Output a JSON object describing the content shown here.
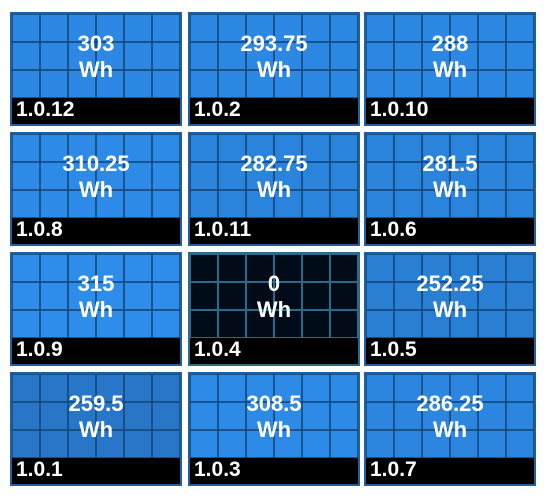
{
  "unit": "Wh",
  "panels": [
    {
      "value": 303,
      "id": "1.0.12",
      "color": "#2c88e2"
    },
    {
      "value": 293.75,
      "id": "1.0.2",
      "color": "#2c88e2"
    },
    {
      "value": 288,
      "id": "1.0.10",
      "color": "#2c88e2"
    },
    {
      "value": 310.25,
      "id": "1.0.8",
      "color": "#2d8ae6"
    },
    {
      "value": 282.75,
      "id": "1.0.11",
      "color": "#2a84dc"
    },
    {
      "value": 281.5,
      "id": "1.0.6",
      "color": "#2a84dc"
    },
    {
      "value": 315,
      "id": "1.0.9",
      "color": "#2e8cea"
    },
    {
      "value": 0,
      "id": "1.0.4",
      "color": "#020c18"
    },
    {
      "value": 252.25,
      "id": "1.0.5",
      "color": "#297fd4"
    },
    {
      "value": 259.5,
      "id": "1.0.1",
      "color": "#2776c8"
    },
    {
      "value": 308.5,
      "id": "1.0.3",
      "color": "#2d8ae6"
    },
    {
      "value": 286.25,
      "id": "1.0.7",
      "color": "#2c86e0"
    }
  ]
}
